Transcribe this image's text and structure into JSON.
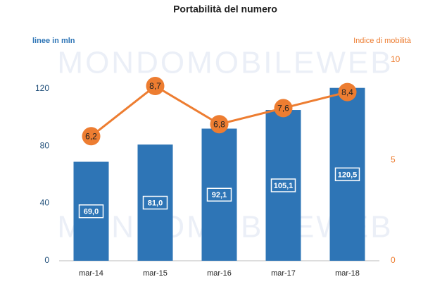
{
  "chart_data": {
    "type": "bar-line",
    "title": "Portabilità del numero",
    "ylabel": "linee in mln",
    "y2label": "Indice di mobilità",
    "watermark": "MONDOMOBILEWEB",
    "categories": [
      "mar-14",
      "mar-15",
      "mar-16",
      "mar-17",
      "mar-18"
    ],
    "series": [
      {
        "type": "bar",
        "color": "#2e75b6",
        "values": [
          69.0,
          81.0,
          92.1,
          105.1,
          120.5
        ],
        "value_labels": [
          "69,0",
          "81,0",
          "92,1",
          "105,1",
          "120,5"
        ]
      },
      {
        "type": "line",
        "axis": "y2",
        "color": "#ed7d31",
        "values": [
          6.2,
          8.7,
          6.8,
          7.6,
          8.4
        ],
        "value_labels": [
          "6,2",
          "8,7",
          "6,8",
          "7,6",
          "8,4"
        ]
      }
    ],
    "ylim": [
      0,
      140
    ],
    "yticks": [
      0,
      40,
      80,
      120
    ],
    "y2lim": [
      0,
      10
    ],
    "y2ticks": [
      0,
      5,
      10
    ],
    "ycolor": "#1f4e79",
    "y2color": "#ed7d31"
  }
}
